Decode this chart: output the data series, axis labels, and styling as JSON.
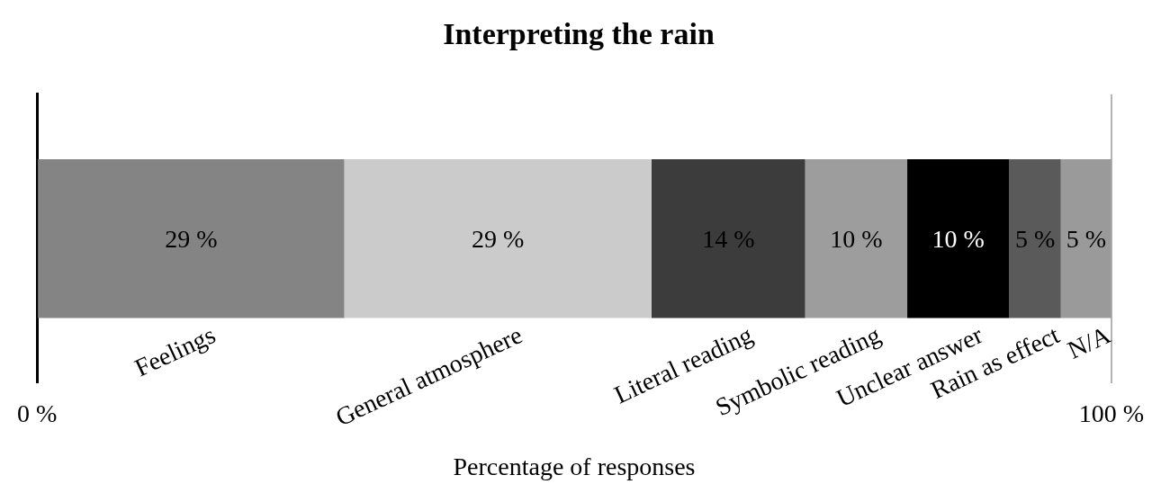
{
  "chart_data": {
    "type": "bar",
    "title": "Interpreting the rain",
    "xlabel": "Percentage of responses",
    "orientation": "horizontal",
    "stacked": true,
    "categories": [
      null
    ],
    "series": [
      {
        "name": "Feelings",
        "color": "#838483",
        "values": [
          28.6
        ],
        "value_labels": [
          "29 %"
        ]
      },
      {
        "name": "General atmosphere",
        "color": "#cacbca",
        "values": [
          28.6
        ],
        "value_labels": [
          "29 %"
        ]
      },
      {
        "name": "Literal reading",
        "color": "#3b3c3b",
        "values": [
          14.3
        ],
        "value_labels": [
          "14 %"
        ]
      },
      {
        "name": "Symbolic reading",
        "color": "#9c9d9c",
        "values": [
          9.5
        ],
        "value_labels": [
          "10 %"
        ]
      },
      {
        "name": "Unclear answer",
        "color": "#000000",
        "values": [
          9.5
        ],
        "value_labels": [
          "10 %"
        ]
      },
      {
        "name": "Rain as effect",
        "color": "#595a59",
        "values": [
          4.8
        ],
        "value_labels": [
          "5 %"
        ]
      },
      {
        "name": "N/A",
        "color": "#999a99",
        "values": [
          4.7
        ],
        "value_labels": [
          "5 %"
        ]
      }
    ],
    "xlim": [
      0,
      100
    ],
    "xticks": [
      {
        "value": 0,
        "label": "0 %"
      },
      {
        "value": 100,
        "label": "100 %"
      }
    ],
    "grid": "x",
    "legend": false
  }
}
